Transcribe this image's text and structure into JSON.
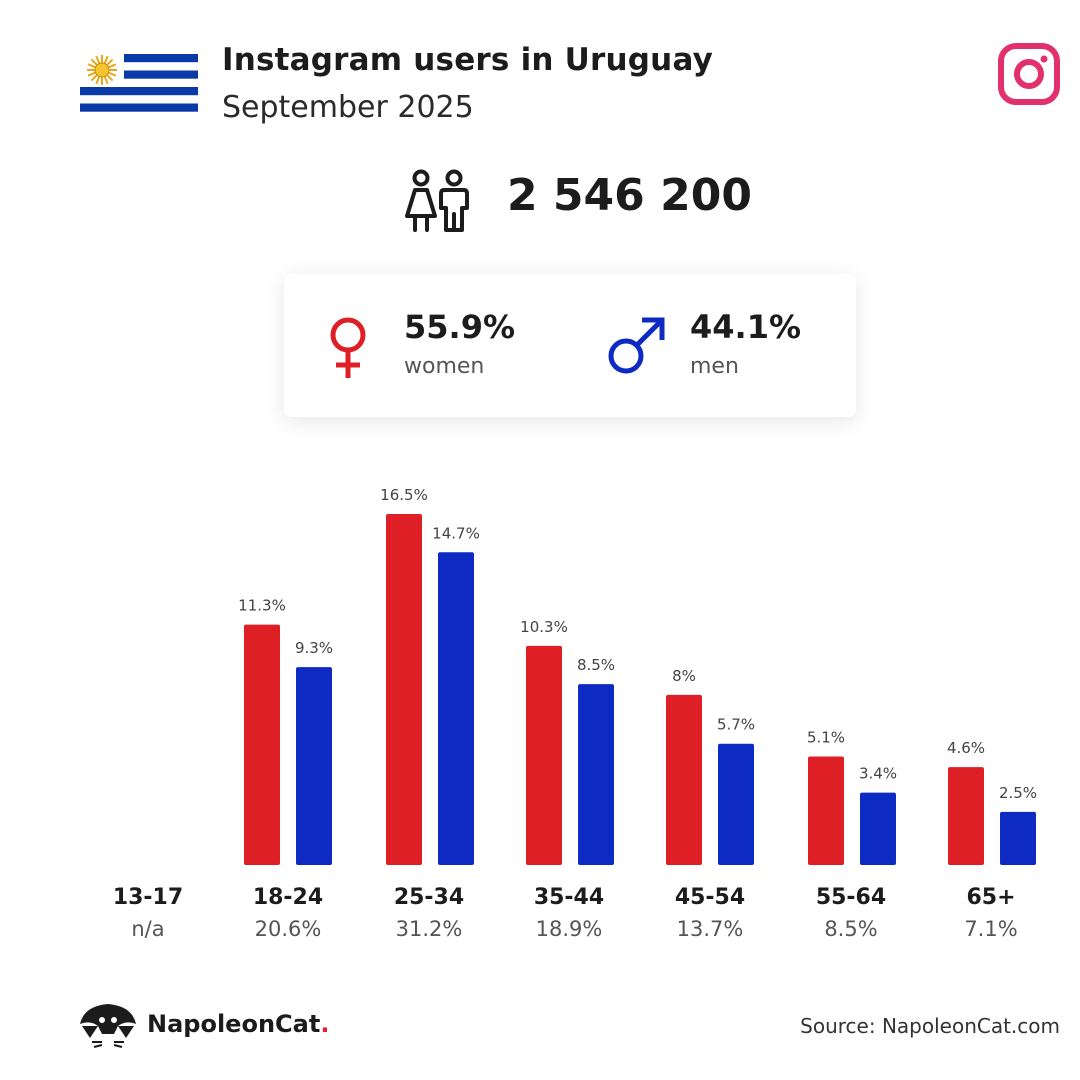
{
  "header": {
    "title": "Instagram users in Uruguay",
    "subtitle": "September 2025"
  },
  "total_users": "2 546 200",
  "gender": {
    "women_pct": "55.9%",
    "women_label": "women",
    "men_pct": "44.1%",
    "men_label": "men"
  },
  "colors": {
    "women": "#df1f26",
    "men": "#0d2bc2",
    "instagram": "#e1306c"
  },
  "chart_data": {
    "type": "bar",
    "categories": [
      "13-17",
      "18-24",
      "25-34",
      "35-44",
      "45-54",
      "55-64",
      "65+"
    ],
    "category_totals": [
      "n/a",
      "20.6%",
      "31.2%",
      "18.9%",
      "13.7%",
      "8.5%",
      "7.1%"
    ],
    "series": [
      {
        "name": "women",
        "values": [
          null,
          11.3,
          16.5,
          10.3,
          8,
          5.1,
          4.6
        ],
        "labels": [
          "",
          "11.3%",
          "16.5%",
          "10.3%",
          "8%",
          "5.1%",
          "4.6%"
        ]
      },
      {
        "name": "men",
        "values": [
          null,
          9.3,
          14.7,
          8.5,
          5.7,
          3.4,
          2.5
        ],
        "labels": [
          "",
          "9.3%",
          "14.7%",
          "8.5%",
          "5.7%",
          "3.4%",
          "2.5%"
        ]
      }
    ],
    "ylim": [
      0,
      16.5
    ]
  },
  "footer": {
    "brand": "NapoleonCat",
    "brand_dot": ".",
    "source": "Source: NapoleonCat.com"
  }
}
